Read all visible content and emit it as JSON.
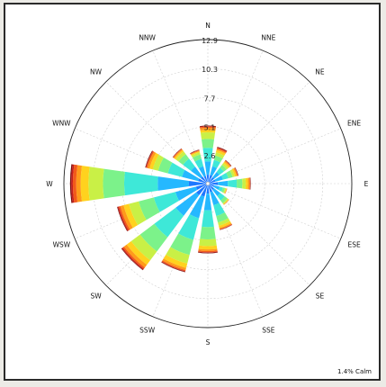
{
  "chart_data": {
    "type": "windrose",
    "title": "",
    "directions": [
      "N",
      "NNE",
      "NE",
      "ENE",
      "E",
      "ESE",
      "SE",
      "SSE",
      "S",
      "SSW",
      "SW",
      "WSW",
      "W",
      "WNW",
      "NW",
      "NNW"
    ],
    "radial_ticks": [
      "2.6",
      "5.1",
      "7.7",
      "10.3",
      "12.9"
    ],
    "radial_tick_values": [
      2.6,
      5.1,
      7.7,
      10.3,
      12.9
    ],
    "rmax": 12.9,
    "speed_bin_colors": [
      "#1f77ff",
      "#25b8ff",
      "#3ee8d8",
      "#7cf28a",
      "#c9f046",
      "#ffd21e",
      "#ff9a1a",
      "#f25a1a",
      "#c8201a",
      "#7a1010"
    ],
    "series_cumulative": [
      [
        0.8,
        2.0,
        3.2,
        4.0,
        4.6,
        4.8,
        5.0,
        5.1,
        5.15,
        5.2
      ],
      [
        0.8,
        1.6,
        2.2,
        2.6,
        2.9,
        3.1,
        3.2,
        3.3,
        3.35,
        3.4
      ],
      [
        0.7,
        1.3,
        1.8,
        2.1,
        2.3,
        2.45,
        2.55,
        2.6,
        2.62,
        2.65
      ],
      [
        0.7,
        1.4,
        1.9,
        2.3,
        2.5,
        2.65,
        2.75,
        2.8,
        2.82,
        2.85
      ],
      [
        0.9,
        1.8,
        2.6,
        3.1,
        3.4,
        3.6,
        3.75,
        3.8,
        3.82,
        3.85
      ],
      [
        0.6,
        1.1,
        1.4,
        1.6,
        1.7,
        1.75,
        1.78,
        1.8,
        1.8,
        1.8
      ],
      [
        0.7,
        1.4,
        1.9,
        2.2,
        2.3,
        2.35,
        2.38,
        2.4,
        2.4,
        2.4
      ],
      [
        0.8,
        2.0,
        3.0,
        3.6,
        3.9,
        4.1,
        4.2,
        4.25,
        4.28,
        4.3
      ],
      [
        0.9,
        2.4,
        3.9,
        5.0,
        5.6,
        5.9,
        6.05,
        6.15,
        6.2,
        6.25
      ],
      [
        1.2,
        3.2,
        5.2,
        6.6,
        7.4,
        7.8,
        8.0,
        8.1,
        8.15,
        8.2
      ],
      [
        1.3,
        3.6,
        6.0,
        7.6,
        8.6,
        9.1,
        9.4,
        9.55,
        9.65,
        9.7
      ],
      [
        1.1,
        3.0,
        5.0,
        6.4,
        7.3,
        7.8,
        8.1,
        8.25,
        8.35,
        8.4
      ],
      [
        1.7,
        4.5,
        7.5,
        9.4,
        10.7,
        11.4,
        11.8,
        12.1,
        12.25,
        12.35
      ],
      [
        0.9,
        2.4,
        3.7,
        4.6,
        5.1,
        5.4,
        5.6,
        5.7,
        5.75,
        5.8
      ],
      [
        0.8,
        1.9,
        2.8,
        3.3,
        3.6,
        3.75,
        3.85,
        3.9,
        3.92,
        3.95
      ],
      [
        0.7,
        1.6,
        2.3,
        2.7,
        2.9,
        3.0,
        3.05,
        3.1,
        3.12,
        3.15
      ]
    ],
    "calm_note": "1.4% Calm"
  }
}
